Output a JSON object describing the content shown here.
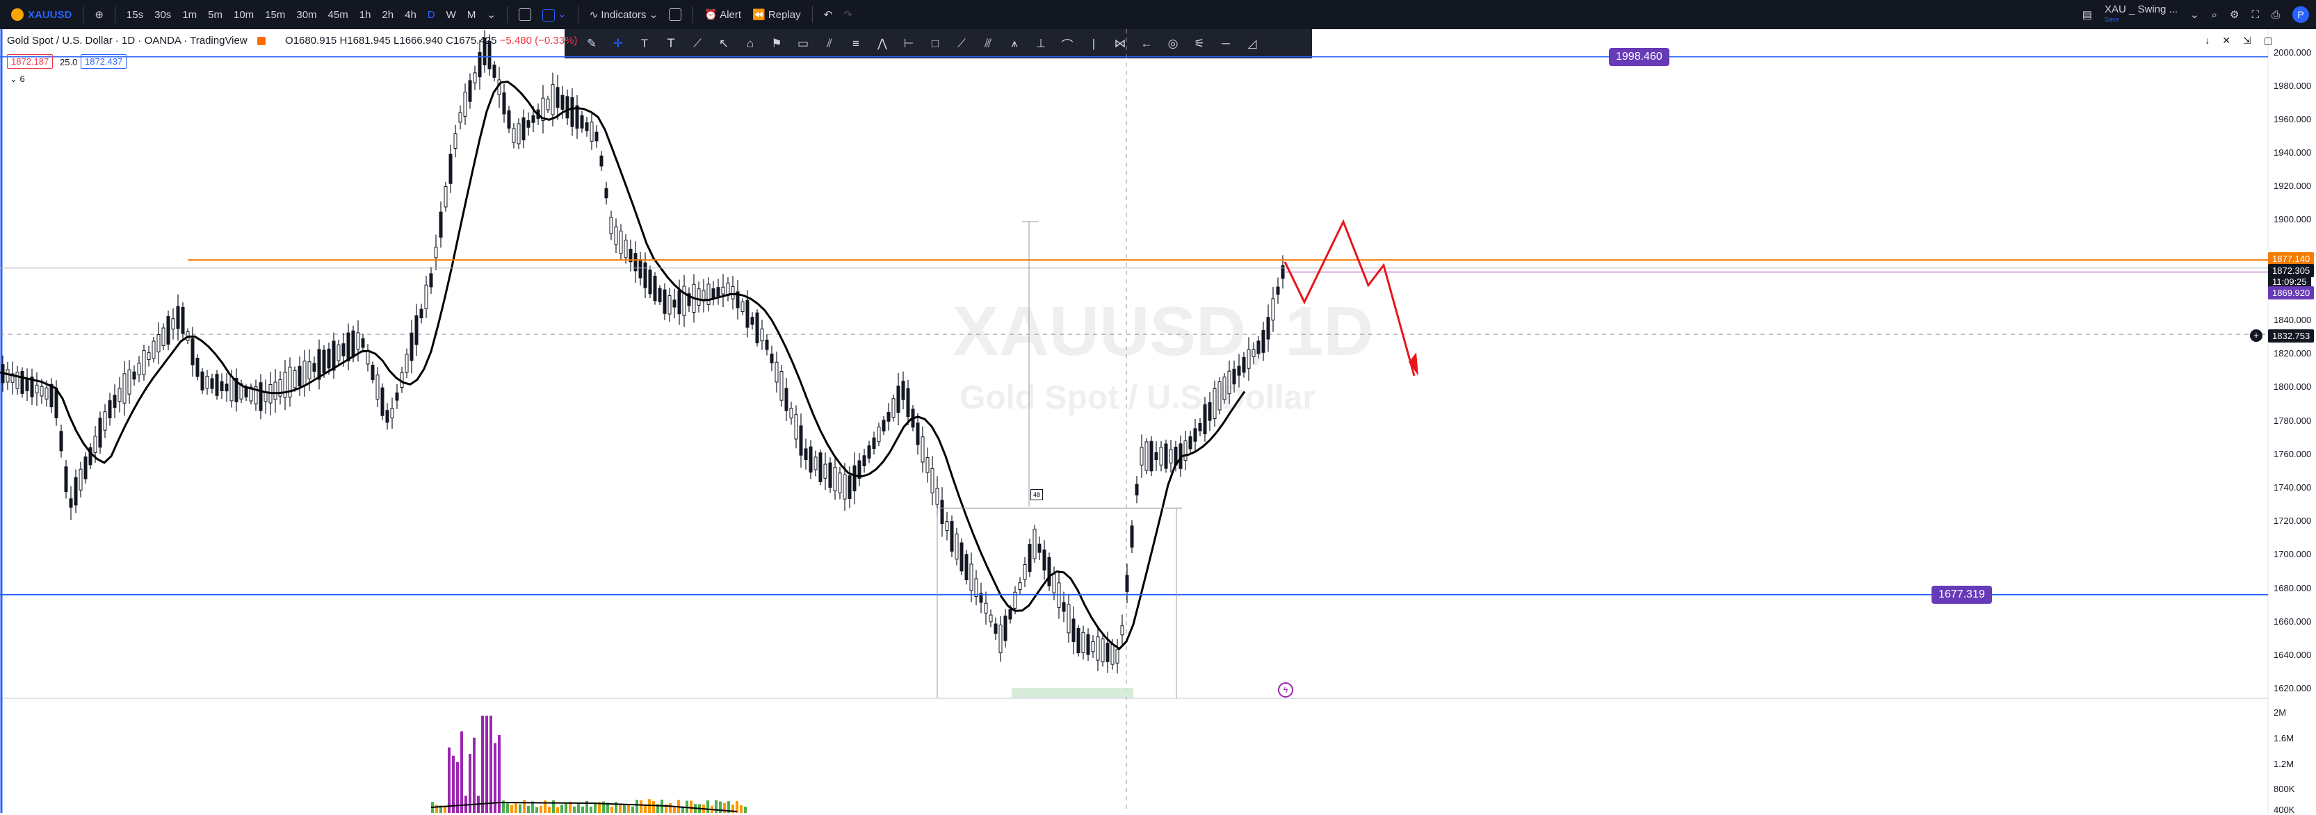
{
  "header": {
    "symbol": "XAUUSD",
    "timeframes": [
      "15s",
      "30s",
      "1m",
      "5m",
      "10m",
      "15m",
      "30m",
      "45m",
      "1h",
      "2h",
      "4h",
      "D",
      "W",
      "M"
    ],
    "active_timeframe": "D",
    "indicators_label": "Indicators",
    "alert_label": "Alert",
    "replay_label": "Replay",
    "layout_name": "XAU _ Swing ...",
    "layout_sub": "Save",
    "avatar_initial": "P"
  },
  "legend": {
    "title": "Gold Spot / U.S. Dollar · 1D · OANDA · TradingView",
    "open": "O1680.915",
    "high": "H1681.945",
    "low": "L1666.940",
    "close": "C1675.425",
    "change": "−5.480 (−0.33%)",
    "bid": "1872.187",
    "spread": "25.0",
    "ask": "1872.437",
    "indicator_count": "6"
  },
  "watermark": {
    "symbol": "XAUUSD, 1D",
    "name": "Gold Spot / U.S. Dollar"
  },
  "price_axis": {
    "ticks": [
      "2000.000",
      "1980.000",
      "1960.000",
      "1940.000",
      "1920.000",
      "1900.000",
      "1840.000",
      "1820.000",
      "1800.000",
      "1780.000",
      "1760.000",
      "1740.000",
      "1720.000",
      "1700.000",
      "1680.000",
      "1660.000",
      "1640.000",
      "1620.000"
    ],
    "tags": {
      "orange_line": "1877.140",
      "last_price": "1872.305",
      "countdown": "11:09:25",
      "purple_line": "1869.920",
      "crosshair": "1832.753"
    }
  },
  "lines": {
    "upper_level": "1998.460",
    "lower_level": "1677.319"
  },
  "volume_axis": {
    "ticks": [
      "2M",
      "1.6M",
      "1.2M",
      "800K",
      "400K"
    ]
  },
  "colors": {
    "toolbar_bg": "#131722",
    "accent": "#2962ff",
    "level_line": "#2962ff",
    "level_tag": "#673ab7",
    "orange": "#f57c00",
    "projection": "#e8161b",
    "candle": "#131722"
  }
}
